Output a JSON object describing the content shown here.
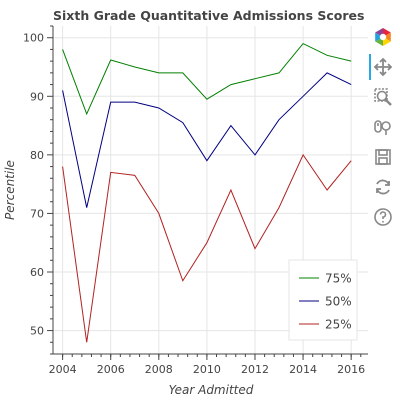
{
  "chart_data": {
    "type": "line",
    "title": "Sixth Grade Quantitative Admissions Scores",
    "xlabel": "Year Admitted",
    "ylabel": "Percentile",
    "xlim": [
      2003.6,
      2016.7
    ],
    "ylim": [
      46,
      102
    ],
    "xticks": [
      2004,
      2006,
      2008,
      2010,
      2012,
      2014,
      2016
    ],
    "yticks": [
      50,
      60,
      70,
      80,
      90,
      100
    ],
    "x": [
      2004,
      2005,
      2006,
      2007,
      2008,
      2009,
      2010,
      2011,
      2012,
      2013,
      2014,
      2015,
      2016
    ],
    "series": [
      {
        "name": "75%",
        "color": "#008000",
        "values": [
          98,
          87,
          96.2,
          95,
          94,
          94,
          89.5,
          92,
          93,
          94,
          99,
          97,
          96
        ]
      },
      {
        "name": "50%",
        "color": "#000080",
        "values": [
          91,
          71,
          89,
          89,
          88,
          85.5,
          79,
          85,
          80,
          86,
          90,
          94,
          92
        ]
      },
      {
        "name": "25%",
        "color": "#b22222",
        "values": [
          78,
          48,
          77,
          76.5,
          70,
          58.5,
          65,
          74,
          64,
          71,
          80,
          74,
          79
        ]
      }
    ],
    "grid": true,
    "legend_position": "bottom-right"
  },
  "toolbar": {
    "tools": [
      {
        "icon": "bokeh-logo-icon"
      },
      {
        "icon": "pan-icon",
        "active": true
      },
      {
        "icon": "box-zoom-icon"
      },
      {
        "icon": "wheel-zoom-icon"
      },
      {
        "icon": "save-icon"
      },
      {
        "icon": "reset-icon"
      },
      {
        "icon": "help-icon"
      }
    ]
  }
}
